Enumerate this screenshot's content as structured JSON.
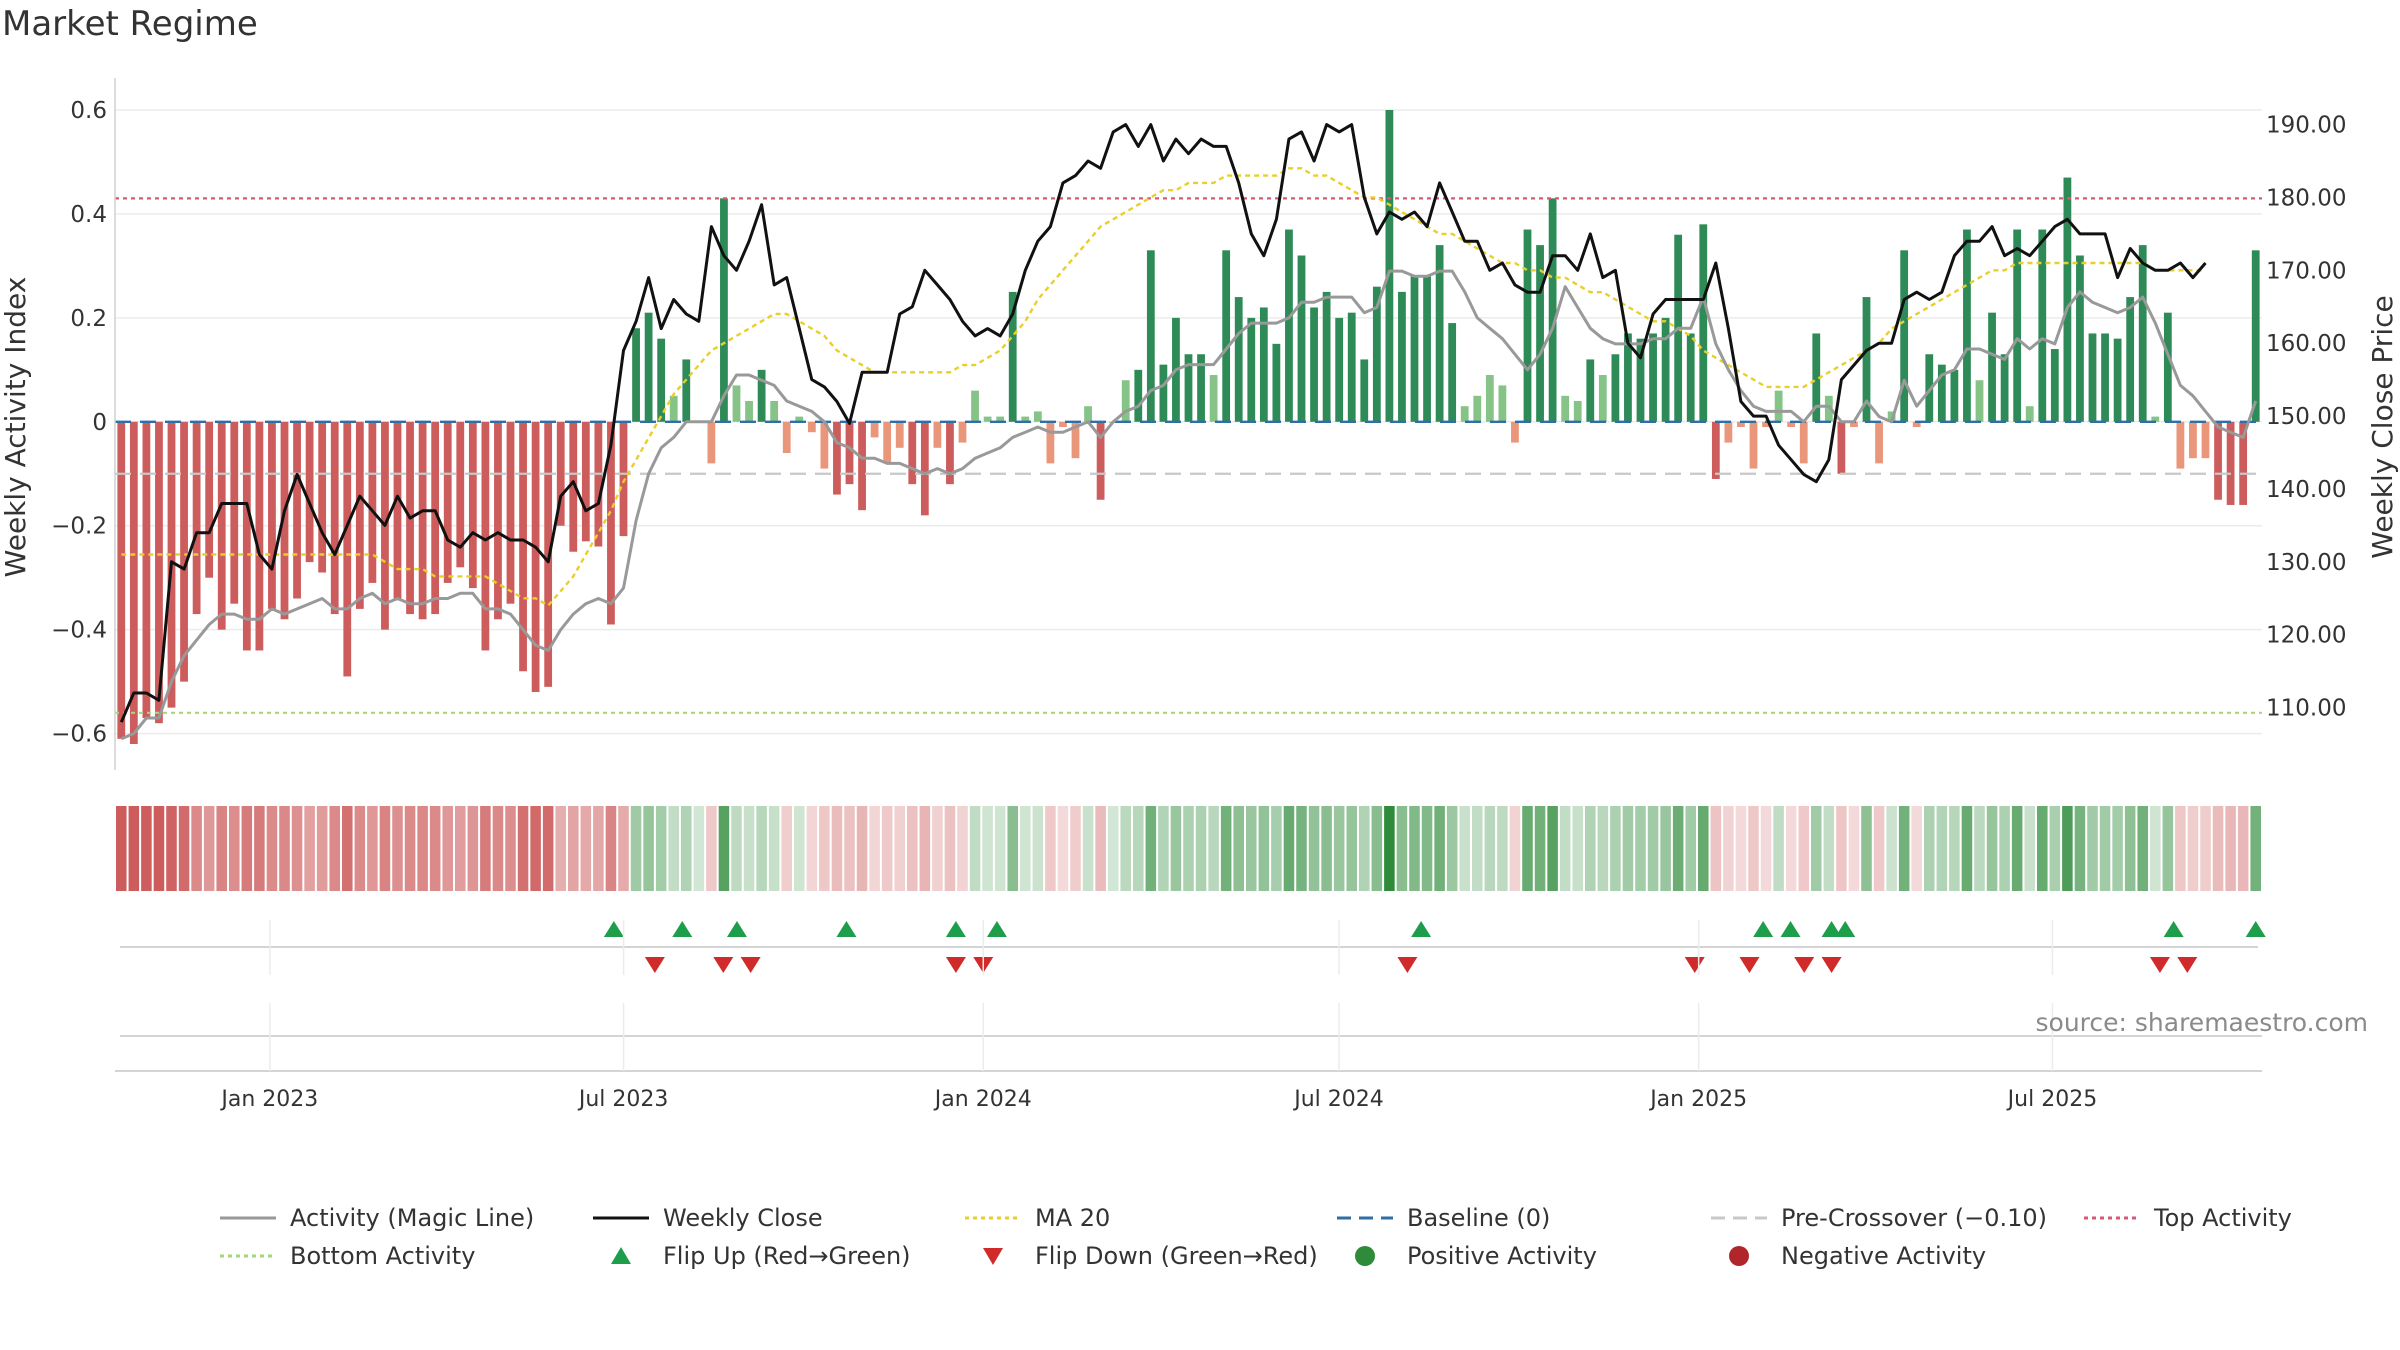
{
  "chart_data": {
    "type": "bar",
    "title": "Market Regime",
    "source": "source: sharemaestro.com",
    "y_left": {
      "label": "Weekly Activity Index",
      "ylim": [
        -0.62,
        0.6
      ],
      "ticks": [
        0.6,
        0.4,
        0.2,
        0,
        -0.2,
        -0.4,
        -0.6
      ],
      "tick_labels": [
        "0.6",
        "0.4",
        "0.2",
        "0",
        "−0.2",
        "−0.4",
        "−0.6"
      ]
    },
    "y_right": {
      "label": "Weekly Close Price",
      "ylim": [
        105,
        192
      ],
      "ticks": [
        190,
        180,
        170,
        160,
        150,
        140,
        130,
        120,
        110
      ],
      "tick_labels": [
        "190.00",
        "180.00",
        "170.00",
        "160.00",
        "150.00",
        "140.00",
        "130.00",
        "120.00",
        "110.00"
      ]
    },
    "x_axis": {
      "start": "2022-10-17",
      "end": "2025-10-13",
      "ticks": [
        "2023-01-01",
        "2023-07-01",
        "2024-01-01",
        "2024-07-01",
        "2025-01-01",
        "2025-07-01"
      ],
      "tick_labels": [
        "Jan 2023",
        "Jul 2023",
        "Jan 2024",
        "Jul 2024",
        "Jan 2025",
        "Jul 2025"
      ]
    },
    "reference_lines": {
      "top_activity": 0.43,
      "bottom_activity": -0.56,
      "baseline": 0,
      "pre_crossover": -0.1
    },
    "activity_index": [
      -0.61,
      -0.62,
      -0.57,
      -0.58,
      -0.55,
      -0.5,
      -0.37,
      -0.3,
      -0.4,
      -0.35,
      -0.44,
      -0.44,
      -0.36,
      -0.38,
      -0.34,
      -0.27,
      -0.29,
      -0.37,
      -0.49,
      -0.36,
      -0.31,
      -0.4,
      -0.34,
      -0.37,
      -0.38,
      -0.37,
      -0.31,
      -0.28,
      -0.32,
      -0.44,
      -0.38,
      -0.35,
      -0.48,
      -0.52,
      -0.51,
      -0.2,
      -0.25,
      -0.23,
      -0.24,
      -0.39,
      -0.22,
      0.18,
      0.21,
      0.16,
      0.05,
      0.12,
      0,
      -0.08,
      0.43,
      0.07,
      0.04,
      0.1,
      0.04,
      -0.06,
      0.01,
      -0.02,
      -0.09,
      -0.14,
      -0.12,
      -0.17,
      -0.03,
      -0.08,
      -0.05,
      -0.12,
      -0.18,
      -0.05,
      -0.12,
      -0.04,
      0.06,
      0.01,
      0.01,
      0.25,
      0.01,
      0.02,
      -0.08,
      -0.01,
      -0.07,
      0.03,
      -0.15,
      0,
      0.08,
      0.1,
      0.33,
      0.11,
      0.2,
      0.13,
      0.13,
      0.09,
      0.33,
      0.24,
      0.2,
      0.22,
      0.15,
      0.37,
      0.32,
      0.22,
      0.25,
      0.2,
      0.21,
      0.12,
      0.26,
      0.6,
      0.25,
      0.28,
      0.28,
      0.34,
      0.19,
      0.03,
      0.05,
      0.09,
      0.07,
      -0.04,
      0.37,
      0.34,
      0.43,
      0.05,
      0.04,
      0.12,
      0.09,
      0.13,
      0.17,
      0.16,
      0.17,
      0.2,
      0.36,
      0.17,
      0.38,
      -0.11,
      -0.04,
      -0.01,
      -0.09,
      -0.01,
      0.06,
      -0.01,
      -0.08,
      0.17,
      0.05,
      -0.1,
      -0.01,
      0.24,
      -0.08,
      0.02,
      0.33,
      -0.01,
      0.13,
      0.11,
      0.1,
      0.37,
      0.08,
      0.21,
      0.13,
      0.37,
      0.03,
      0.37,
      0.14,
      0.47,
      0.32,
      0.17,
      0.17,
      0.16,
      0.24,
      0.34,
      0.01,
      0.21,
      -0.09,
      -0.07,
      -0.07,
      -0.15,
      -0.16,
      -0.16,
      0.33
    ],
    "magic_line": [
      -0.61,
      -0.6,
      -0.57,
      -0.57,
      -0.5,
      -0.45,
      -0.42,
      -0.39,
      -0.37,
      -0.37,
      -0.38,
      -0.38,
      -0.36,
      -0.37,
      -0.36,
      -0.35,
      -0.34,
      -0.36,
      -0.36,
      -0.34,
      -0.33,
      -0.35,
      -0.34,
      -0.35,
      -0.35,
      -0.34,
      -0.34,
      -0.33,
      -0.33,
      -0.36,
      -0.36,
      -0.37,
      -0.4,
      -0.43,
      -0.44,
      -0.4,
      -0.37,
      -0.35,
      -0.34,
      -0.35,
      -0.32,
      -0.19,
      -0.1,
      -0.05,
      -0.03,
      0,
      0,
      0,
      0.05,
      0.09,
      0.09,
      0.08,
      0.07,
      0.04,
      0.03,
      0.02,
      0,
      -0.04,
      -0.05,
      -0.07,
      -0.07,
      -0.08,
      -0.08,
      -0.09,
      -0.1,
      -0.09,
      -0.1,
      -0.09,
      -0.07,
      -0.06,
      -0.05,
      -0.03,
      -0.02,
      -0.01,
      -0.02,
      -0.02,
      -0.01,
      0,
      -0.03,
      0,
      0.02,
      0.03,
      0.06,
      0.07,
      0.1,
      0.11,
      0.11,
      0.11,
      0.14,
      0.17,
      0.19,
      0.19,
      0.19,
      0.2,
      0.23,
      0.23,
      0.24,
      0.24,
      0.24,
      0.21,
      0.22,
      0.29,
      0.29,
      0.28,
      0.28,
      0.29,
      0.29,
      0.25,
      0.2,
      0.18,
      0.16,
      0.13,
      0.1,
      0.13,
      0.18,
      0.26,
      0.22,
      0.18,
      0.16,
      0.15,
      0.15,
      0.15,
      0.16,
      0.16,
      0.18,
      0.18,
      0.24,
      0.15,
      0.1,
      0.06,
      0.03,
      0.02,
      0.02,
      0.02,
      0,
      0.03,
      0.03,
      0,
      0,
      0.04,
      0.01,
      0,
      0.08,
      0.03,
      0.06,
      0.09,
      0.1,
      0.14,
      0.14,
      0.13,
      0.12,
      0.16,
      0.14,
      0.16,
      0.15,
      0.22,
      0.25,
      0.23,
      0.22,
      0.21,
      0.22,
      0.24,
      0.19,
      0.13,
      0.07,
      0.05,
      0.02,
      -0.01,
      -0.02,
      -0.03,
      0.04
    ],
    "weekly_close": [
      108,
      112,
      112,
      111,
      130,
      129,
      134,
      134,
      138,
      138,
      138,
      131,
      129,
      137,
      142,
      138,
      134,
      131,
      135,
      139,
      137,
      135,
      139,
      136,
      137,
      137,
      133,
      132,
      134,
      133,
      134,
      133,
      133,
      132,
      130,
      139,
      141,
      137,
      138,
      146,
      159,
      163,
      169,
      162,
      166,
      164,
      163,
      176,
      172,
      170,
      174,
      179,
      168,
      169,
      162,
      155,
      154,
      152,
      149,
      156,
      156,
      156,
      164,
      165,
      170,
      168,
      166,
      163,
      161,
      162,
      161,
      164,
      170,
      174,
      176,
      182,
      183,
      185,
      184,
      189,
      190,
      187,
      190,
      185,
      188,
      186,
      188,
      187,
      187,
      182,
      175,
      172,
      177,
      188,
      189,
      185,
      190,
      189,
      190,
      180,
      175,
      178,
      177,
      178,
      176,
      182,
      178,
      174,
      174,
      170,
      171,
      168,
      167,
      167,
      172,
      172,
      170,
      175,
      169,
      170,
      160,
      158,
      164,
      166,
      166,
      166,
      166,
      171,
      162,
      152,
      150,
      150,
      146,
      144,
      142,
      141,
      144,
      155,
      157,
      159,
      160,
      160,
      166,
      167,
      166,
      167,
      172,
      174,
      174,
      176,
      172,
      173,
      172,
      174,
      176,
      177,
      175,
      175,
      175,
      169,
      173,
      171,
      170,
      170,
      171,
      169,
      171
    ],
    "ma20": [
      131,
      131,
      131,
      131,
      131,
      131,
      131,
      131,
      131,
      131,
      131,
      131,
      131,
      131,
      131,
      131,
      131,
      131,
      131,
      131,
      131,
      130,
      129,
      129,
      129,
      128,
      128,
      128,
      128,
      128,
      127,
      126,
      125,
      125,
      124,
      126,
      128,
      131,
      134,
      137,
      141,
      144,
      147,
      150,
      153,
      155,
      157,
      159,
      160,
      161,
      162,
      163,
      164,
      164,
      163,
      162,
      161,
      159,
      158,
      157,
      156,
      156,
      156,
      156,
      156,
      156,
      156,
      157,
      157,
      158,
      159,
      161,
      163,
      166,
      168,
      170,
      172,
      174,
      176,
      177,
      178,
      179,
      180,
      181,
      181,
      182,
      182,
      182,
      183,
      183,
      183,
      183,
      183,
      184,
      184,
      183,
      183,
      182,
      181,
      180,
      180,
      179,
      178,
      177,
      176,
      175,
      175,
      174,
      173,
      172,
      171,
      171,
      170,
      170,
      169,
      169,
      168,
      167,
      167,
      166,
      165,
      164,
      163,
      163,
      162,
      161,
      159,
      158,
      157,
      156,
      155,
      154,
      154,
      154,
      154,
      155,
      156,
      157,
      158,
      159,
      160,
      162,
      163,
      164,
      165,
      166,
      167,
      168,
      169,
      170,
      170,
      171,
      171,
      171,
      171,
      171,
      171,
      171,
      171,
      171,
      171,
      171,
      170,
      170,
      170,
      170,
      170
    ],
    "flip_up_markers": [
      "2023-06-26",
      "2023-07-31",
      "2023-08-28",
      "2023-10-23",
      "2023-12-18",
      "2024-01-08",
      "2024-08-12",
      "2025-02-03",
      "2025-02-17",
      "2025-03-10",
      "2025-03-17",
      "2025-09-01",
      "2025-10-13"
    ],
    "flip_down_markers": [
      "2023-07-17",
      "2023-08-21",
      "2023-09-04",
      "2023-12-18",
      "2024-01-01",
      "2024-08-05",
      "2024-12-30",
      "2025-01-27",
      "2025-02-24",
      "2025-03-10",
      "2025-08-25",
      "2025-09-08"
    ],
    "legend": [
      {
        "label": "Activity (Magic Line)",
        "kind": "line",
        "color": "#999999",
        "dash": ""
      },
      {
        "label": "Weekly Close",
        "kind": "line",
        "color": "#111111",
        "dash": ""
      },
      {
        "label": "MA 20",
        "kind": "line",
        "color": "#e8cf2a",
        "dash": "4,4"
      },
      {
        "label": "Baseline (0)",
        "kind": "line",
        "color": "#2f6fa6",
        "dash": "14,8"
      },
      {
        "label": "Pre-Crossover (−0.10)",
        "kind": "line",
        "color": "#c8c8c8",
        "dash": "14,8"
      },
      {
        "label": "Top Activity",
        "kind": "line",
        "color": "#d65a74",
        "dash": "4,4"
      },
      {
        "label": "Bottom Activity",
        "kind": "line",
        "color": "#a8d77a",
        "dash": "4,4"
      },
      {
        "label": "Flip Up (Red→Green)",
        "kind": "triangle-up",
        "color": "#1e9e4a",
        "dash": ""
      },
      {
        "label": "Flip Down (Green→Red)",
        "kind": "triangle-down",
        "color": "#d12a2a",
        "dash": ""
      },
      {
        "label": "Positive Activity",
        "kind": "dot",
        "color": "#2e8b3a",
        "dash": ""
      },
      {
        "label": "Negative Activity",
        "kind": "dot",
        "color": "#b0262b",
        "dash": ""
      }
    ],
    "colors": {
      "bar_pos_strong": "#2e8b57",
      "bar_pos_light": "#86c387",
      "bar_neg_strong": "#cd5c5c",
      "bar_neg_light": "#e9967a",
      "heat_pos": "#2e8b3a",
      "heat_neg": "#cd5c5c"
    },
    "grid": true,
    "legend_position": "bottom"
  }
}
